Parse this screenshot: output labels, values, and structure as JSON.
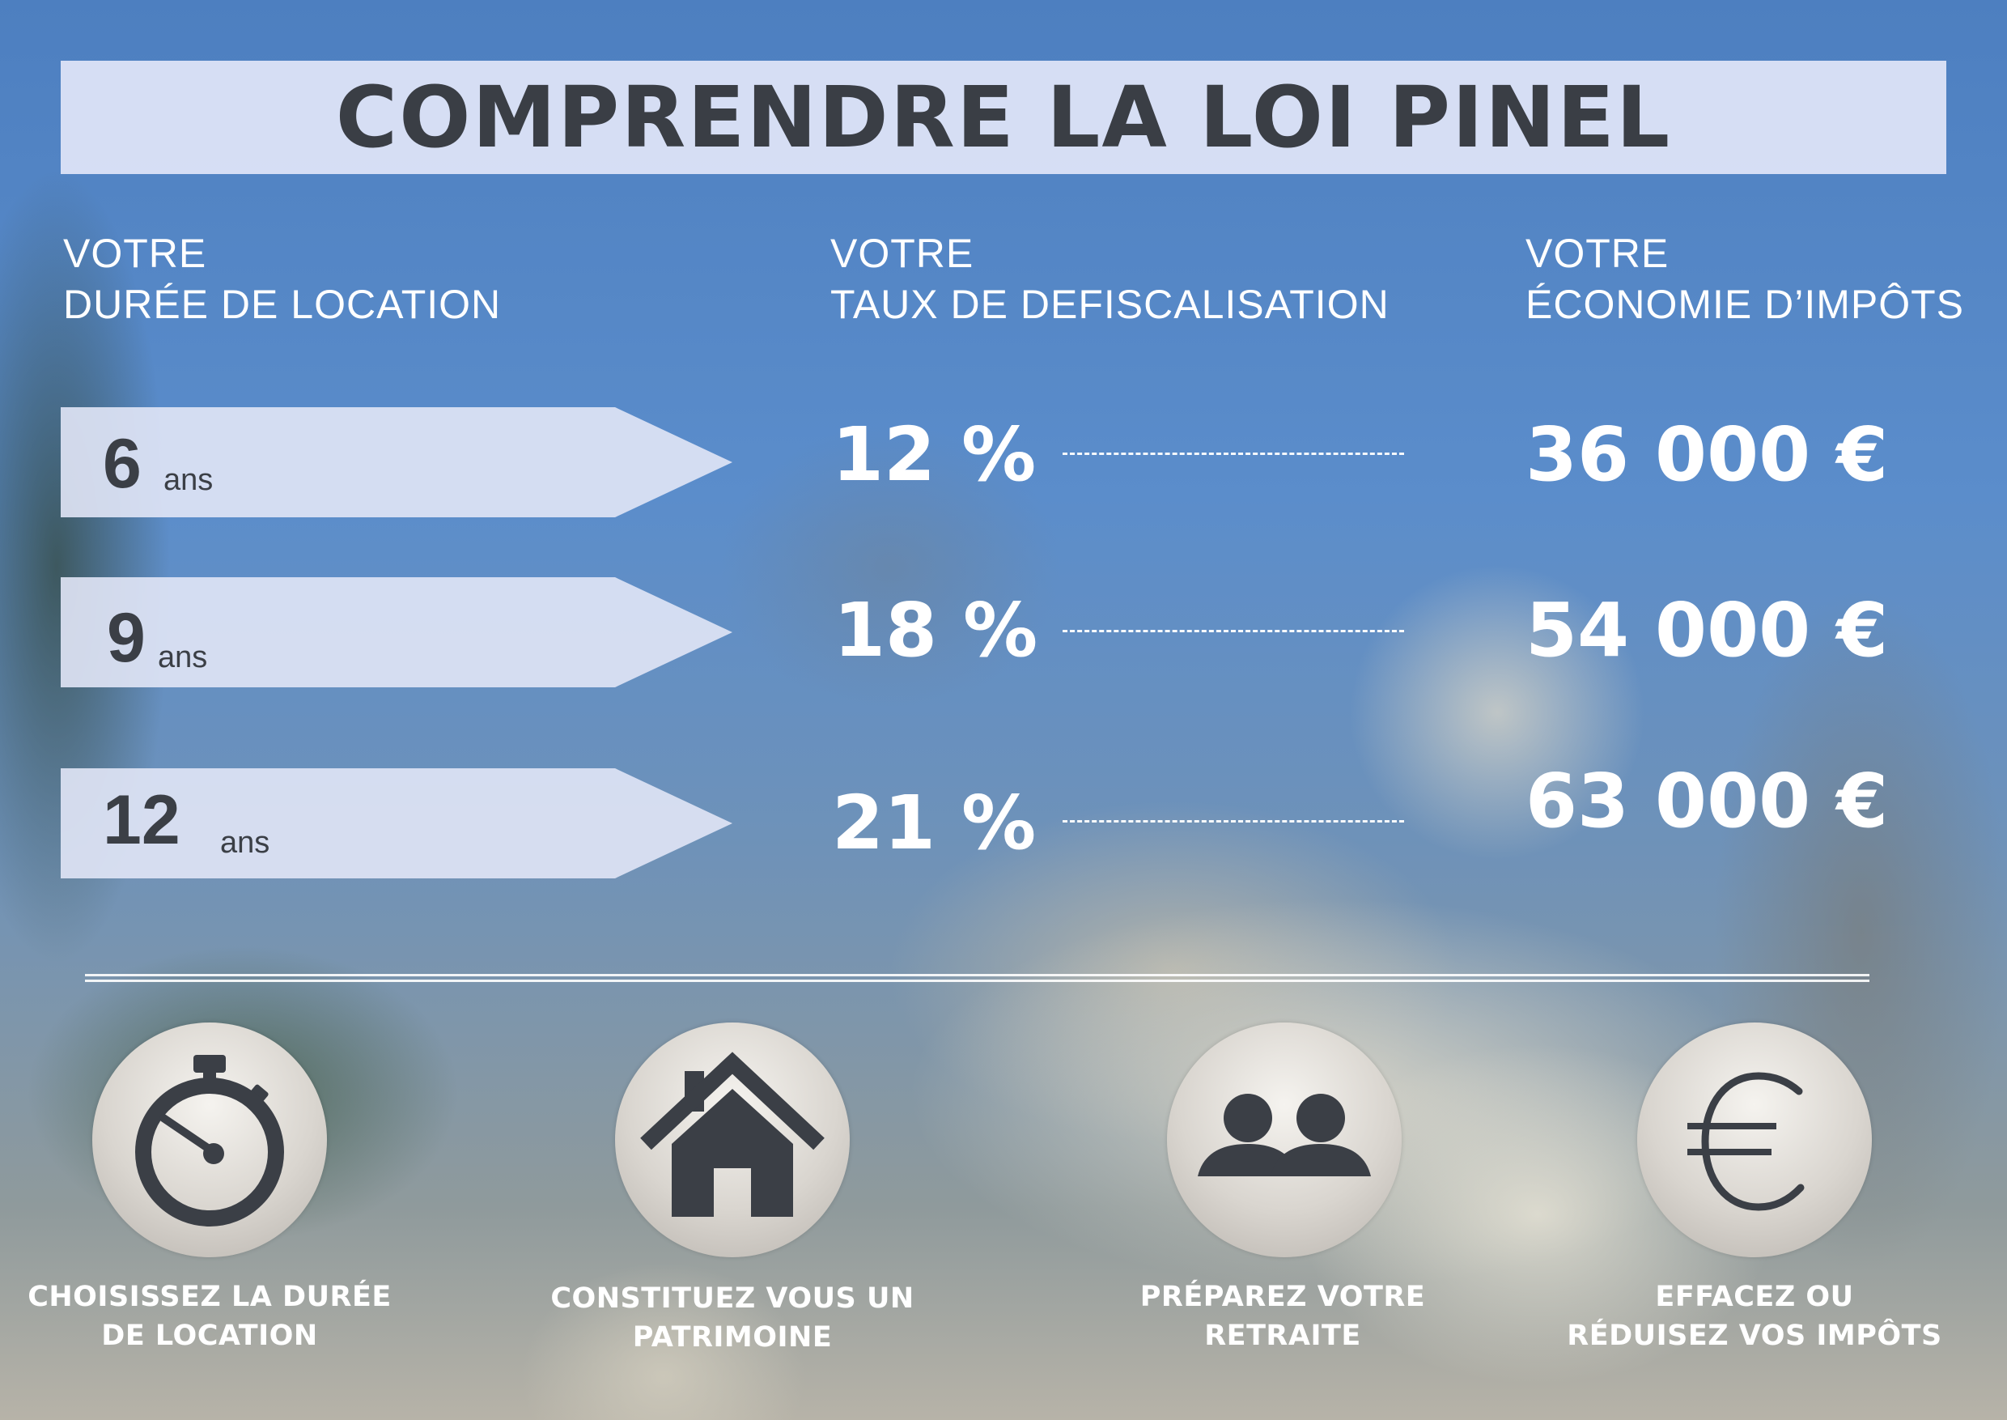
{
  "title": "COMPRENDRE LA LOI PINEL",
  "columns": {
    "duration": {
      "line1": "VOTRE",
      "line2": "DURÉE DE LOCATION"
    },
    "rate": {
      "line1": "VOTRE",
      "line2": "TAUX DE DEFISCALISATION"
    },
    "saving": {
      "line1": "VOTRE",
      "line2": "ÉCONOMIE D’IMPÔTS"
    }
  },
  "rows": [
    {
      "duration": "6",
      "unit": "ans",
      "rate": "12 %",
      "saving": "36 000 €"
    },
    {
      "duration": "9",
      "unit": "ans",
      "rate": "18 %",
      "saving": "54 000 €"
    },
    {
      "duration": "12",
      "unit": "ans",
      "rate": "21 %",
      "saving": "63 000 €"
    }
  ],
  "features": [
    {
      "icon": "stopwatch-icon",
      "line1": "CHOISISSEZ LA DURÉE",
      "line2": "DE LOCATION"
    },
    {
      "icon": "house-icon",
      "line1": "CONSTITUEZ VOUS UN",
      "line2": "PATRIMOINE"
    },
    {
      "icon": "people-icon",
      "line1": "PRÉPAREZ VOTRE",
      "line2": "RETRAITE"
    },
    {
      "icon": "euro-icon",
      "line1": "EFFACEZ OU",
      "line2": "RÉDUISEZ VOS IMPÔTS"
    }
  ],
  "colors": {
    "text_dark": "#3b3f46",
    "panel": "#e2e6f8",
    "text_light": "#ffffff"
  }
}
